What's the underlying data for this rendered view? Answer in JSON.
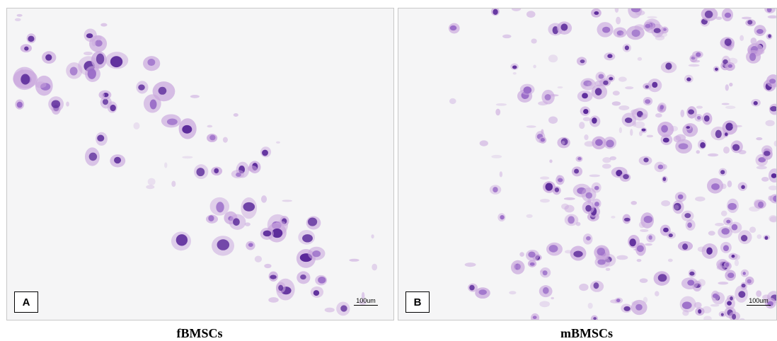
{
  "panels": [
    {
      "label": "A",
      "caption": "fBMSCs",
      "scale_bar": "100um",
      "cell_density": "sparse",
      "stain_color": "#7b3fb0"
    },
    {
      "label": "B",
      "caption": "mBMSCs",
      "scale_bar": "100um",
      "cell_density": "dense",
      "stain_color": "#5a3fc0"
    }
  ],
  "colors": {
    "background": "#f5f5f6",
    "cell_dark": "#5b2a9a",
    "cell_light": "#c9a6dd",
    "border": "#c8c8c8"
  }
}
